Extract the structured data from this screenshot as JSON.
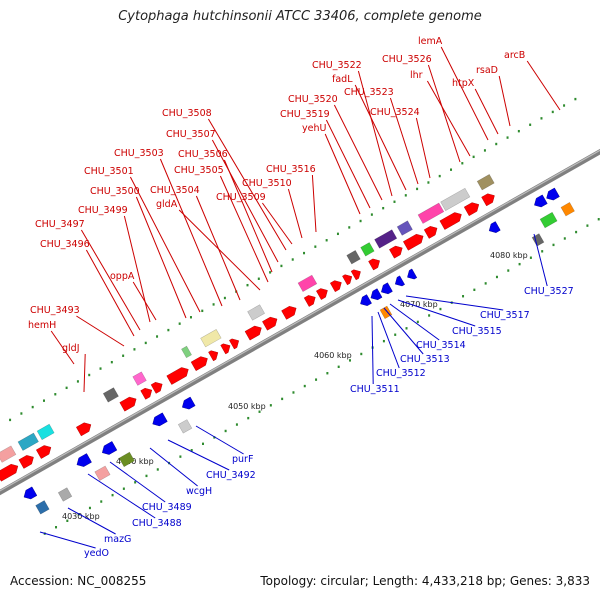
{
  "title": "Cytophaga hutchinsonii ATCC 33406, complete genome",
  "footer": {
    "accession": "Accession: NC_008255",
    "summary": "Topology: circular; Length: 4,433,218 bp; Genes: 3,833"
  },
  "colors": {
    "forward_label": "#cc0000",
    "reverse_label": "#0000cc",
    "backbone": "#808080",
    "gene_red": "#ff0000",
    "gene_blue": "#0000ee"
  },
  "scale_ticks": [
    "4030 kbp",
    "4040 kbp",
    "4050 kbp",
    "4060 kbp",
    "4070 kbp",
    "4080 kbp"
  ],
  "forward_labels": [
    "CHU_3493",
    "hemH",
    "gldJ",
    "CHU_3496",
    "CHU_3497",
    "CHU_3499",
    "CHU_3500",
    "CHU_3501",
    "oppA",
    "CHU_3503",
    "CHU_3504",
    "gldA",
    "CHU_3505",
    "CHU_3506",
    "CHU_3507",
    "CHU_3508",
    "CHU_3509",
    "CHU_3510",
    "CHU_3516",
    "yehU",
    "CHU_3519",
    "CHU_3520",
    "CHU_3522",
    "fadL",
    "CHU_3523",
    "CHU_3524",
    "CHU_3526",
    "lhr",
    "lemA",
    "htpX",
    "rsaD",
    "arcB"
  ],
  "reverse_labels": [
    "yedO",
    "mazG",
    "CHU_3488",
    "CHU_3489",
    "wcgH",
    "CHU_3492",
    "purF",
    "CHU_3511",
    "CHU_3512",
    "CHU_3513",
    "CHU_3514",
    "CHU_3515",
    "CHU_3517",
    "CHU_3527"
  ]
}
